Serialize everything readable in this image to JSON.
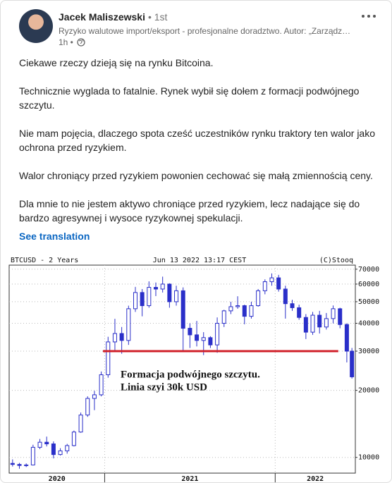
{
  "post": {
    "author": "Jacek Maliszewski",
    "degree": "• 1st",
    "headline": "Ryzyko walutowe import/eksport - profesjonalne doradztwo. Autor: „Zarządz…",
    "time": "1h •",
    "paragraphs": [
      "Ciekawe rzeczy dzieją się na rynku Bitcoina.",
      "Technicznie wyglada to fatalnie. Rynek wybił się dołem z formacji podwójnego szczytu.",
      "Nie mam pojęcia, dlaczego spota cześć uczestników rynku traktory ten walor jako ochrona przed ryzykiem.",
      "Walor chroniący przed ryzykiem powonien cechować się małą zmiennością ceny.",
      "Dla mnie to nie jestem aktywo chroniące przed ryzykiem, lecz nadające się do bardzo agresywnej i wysoce ryzykownej spekulacji."
    ],
    "see_translation": "See translation"
  },
  "chart_data": {
    "type": "candlestick",
    "title": "BTCUSD - 2 Years",
    "subtitle": "Jun 13 2022 13:17 CEST",
    "source": "(C)Stooq",
    "color": "#2a2fc9",
    "log_scale": true,
    "grid": true,
    "ylim": [
      8500,
      73000
    ],
    "yticks": [
      10000,
      20000,
      30000,
      40000,
      50000,
      60000,
      70000
    ],
    "xlim": [
      2020.44,
      2022.47
    ],
    "x_labels": [
      2020,
      2021,
      2022
    ],
    "x": [
      2020.46,
      2020.5,
      2020.54,
      2020.58,
      2020.62,
      2020.66,
      2020.7,
      2020.74,
      2020.78,
      2020.82,
      2020.86,
      2020.9,
      2020.94,
      2020.98,
      2021.02,
      2021.06,
      2021.1,
      2021.14,
      2021.18,
      2021.22,
      2021.26,
      2021.3,
      2021.34,
      2021.38,
      2021.42,
      2021.46,
      2021.5,
      2021.54,
      2021.58,
      2021.62,
      2021.66,
      2021.7,
      2021.74,
      2021.78,
      2021.82,
      2021.86,
      2021.9,
      2021.94,
      2021.98,
      2022.02,
      2022.06,
      2022.1,
      2022.14,
      2022.18,
      2022.22,
      2022.26,
      2022.3,
      2022.34,
      2022.38,
      2022.42,
      2022.45
    ],
    "open": [
      9400,
      9300,
      9200,
      9250,
      11100,
      11700,
      11500,
      10300,
      10700,
      11300,
      13000,
      15500,
      18400,
      19100,
      23500,
      33000,
      36000,
      33500,
      46500,
      55000,
      48000,
      58000,
      57000,
      60000,
      50000,
      56000,
      38000,
      35500,
      33500,
      34500,
      32000,
      40000,
      45500,
      47500,
      48000,
      43000,
      48000,
      56000,
      61500,
      64000,
      57000,
      49000,
      47000,
      42500,
      36500,
      43500,
      38500,
      42000,
      46500,
      39500,
      30000
    ],
    "high": [
      9800,
      9450,
      9400,
      11400,
      12100,
      12400,
      11800,
      11000,
      11500,
      13200,
      15900,
      18800,
      19900,
      24300,
      34800,
      41900,
      38500,
      48000,
      58300,
      57000,
      61700,
      61000,
      64800,
      60500,
      59000,
      58000,
      40000,
      41000,
      36500,
      35000,
      42500,
      46000,
      50000,
      52900,
      48500,
      50000,
      57000,
      63000,
      67000,
      66000,
      59000,
      51000,
      48500,
      44000,
      45000,
      45500,
      44500,
      48100,
      47000,
      40000,
      31000
    ],
    "low": [
      9100,
      8900,
      9050,
      9200,
      10900,
      11200,
      9900,
      10200,
      10400,
      11200,
      12900,
      15200,
      16300,
      18800,
      22800,
      30000,
      29200,
      32000,
      45000,
      43000,
      47000,
      53000,
      55000,
      47000,
      48000,
      30000,
      31000,
      31500,
      28800,
      31000,
      29500,
      38500,
      44000,
      46500,
      39600,
      42000,
      47500,
      54000,
      59000,
      55500,
      42000,
      45500,
      41500,
      34000,
      35500,
      36000,
      37500,
      40000,
      38000,
      26700,
      22600
    ],
    "close": [
      9300,
      9200,
      9250,
      11100,
      11700,
      11500,
      10300,
      10700,
      11300,
      13000,
      15500,
      18400,
      19100,
      23500,
      33000,
      36000,
      33500,
      46500,
      55000,
      48000,
      58000,
      57000,
      60000,
      50000,
      56000,
      38000,
      35500,
      33500,
      34500,
      32000,
      40000,
      45500,
      47500,
      48000,
      43000,
      48000,
      56000,
      61500,
      64000,
      57000,
      49000,
      47000,
      42500,
      36500,
      43500,
      38500,
      42000,
      46500,
      39500,
      30000,
      23000
    ],
    "neckline": {
      "value": 30000,
      "x": [
        2020.99,
        2022.37
      ],
      "color": "#d0202a"
    },
    "annotations": [
      "Formacja podwójnego szczytu.",
      "Linia szyi 30k USD"
    ]
  }
}
